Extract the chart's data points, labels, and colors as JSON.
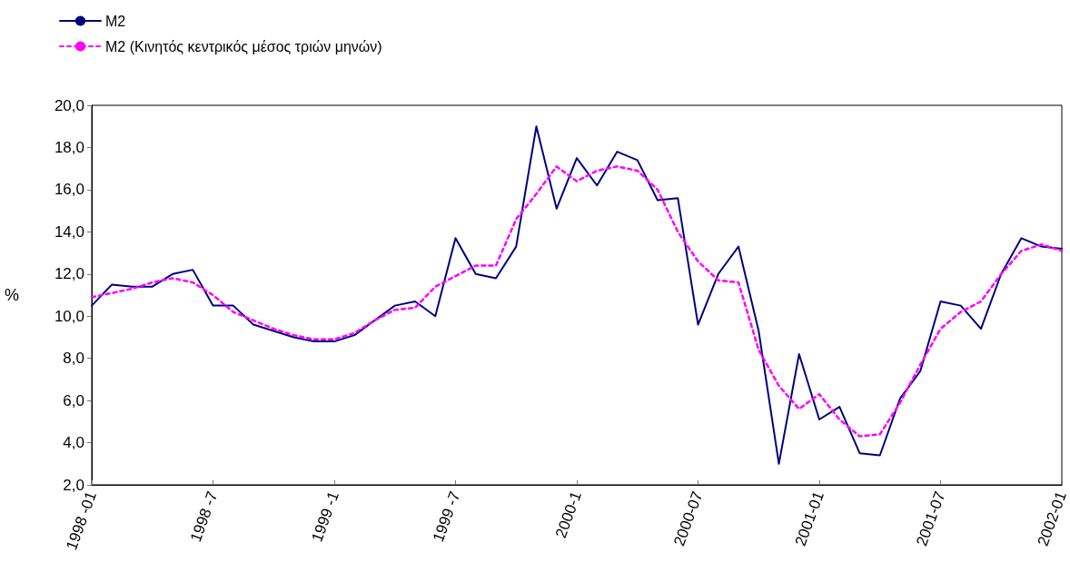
{
  "chart_data": {
    "type": "line",
    "ylabel": "%",
    "categories": [
      "1998 -01",
      null,
      null,
      null,
      null,
      null,
      "1998 -7",
      null,
      null,
      null,
      null,
      null,
      "1999 -1",
      null,
      null,
      null,
      null,
      null,
      "1999 -7",
      null,
      null,
      null,
      null,
      null,
      "2000-1",
      null,
      null,
      null,
      null,
      null,
      "2000-07",
      null,
      null,
      null,
      null,
      null,
      "2001-01",
      null,
      null,
      null,
      null,
      null,
      "2001-07",
      null,
      null,
      null,
      null,
      null,
      "2002-01"
    ],
    "series": [
      {
        "name": "M2",
        "color": "#000080",
        "line_style": "solid",
        "values": [
          10.5,
          11.5,
          11.4,
          11.4,
          12.0,
          12.2,
          10.5,
          10.5,
          9.6,
          9.3,
          9.0,
          8.8,
          8.8,
          9.1,
          9.8,
          10.5,
          10.7,
          10.0,
          13.7,
          12.0,
          11.8,
          13.3,
          19.0,
          15.1,
          17.5,
          16.2,
          17.8,
          17.4,
          15.5,
          15.6,
          9.6,
          12.0,
          13.3,
          9.3,
          3.0,
          8.2,
          5.1,
          5.7,
          3.5,
          3.4,
          6.1,
          7.4,
          10.7,
          10.5,
          9.4,
          12.0,
          13.7,
          13.3,
          13.2
        ]
      },
      {
        "name": "M2 (Κινητός κεντρικός μέσος τριών μηνών)",
        "color": "#ff00ff",
        "line_style": "dashed",
        "values": [
          10.9,
          11.1,
          11.3,
          11.6,
          11.8,
          11.6,
          11.0,
          10.2,
          9.8,
          9.4,
          9.1,
          8.9,
          8.9,
          9.2,
          9.8,
          10.3,
          10.4,
          11.4,
          11.9,
          12.4,
          12.4,
          14.6,
          15.8,
          17.1,
          16.4,
          16.9,
          17.1,
          16.9,
          16.0,
          14.0,
          12.6,
          11.7,
          11.6,
          8.4,
          6.7,
          5.6,
          6.3,
          5.1,
          4.3,
          4.4,
          5.9,
          7.7,
          9.4,
          10.2,
          10.7,
          12.0,
          13.1,
          13.4,
          13.1
        ]
      }
    ],
    "ylim": [
      2,
      20
    ],
    "yticks": [
      {
        "value": 2,
        "label": "2,0"
      },
      {
        "value": 4,
        "label": "4,0"
      },
      {
        "value": 6,
        "label": "6,0"
      },
      {
        "value": 8,
        "label": "8,0"
      },
      {
        "value": 10,
        "label": "10,0"
      },
      {
        "value": 12,
        "label": "12,0"
      },
      {
        "value": 14,
        "label": "14,0"
      },
      {
        "value": 16,
        "label": "16,0"
      },
      {
        "value": 18,
        "label": "18,0"
      },
      {
        "value": 20,
        "label": "20,0"
      }
    ],
    "grid": false,
    "legend": "top left",
    "marker": "none"
  }
}
